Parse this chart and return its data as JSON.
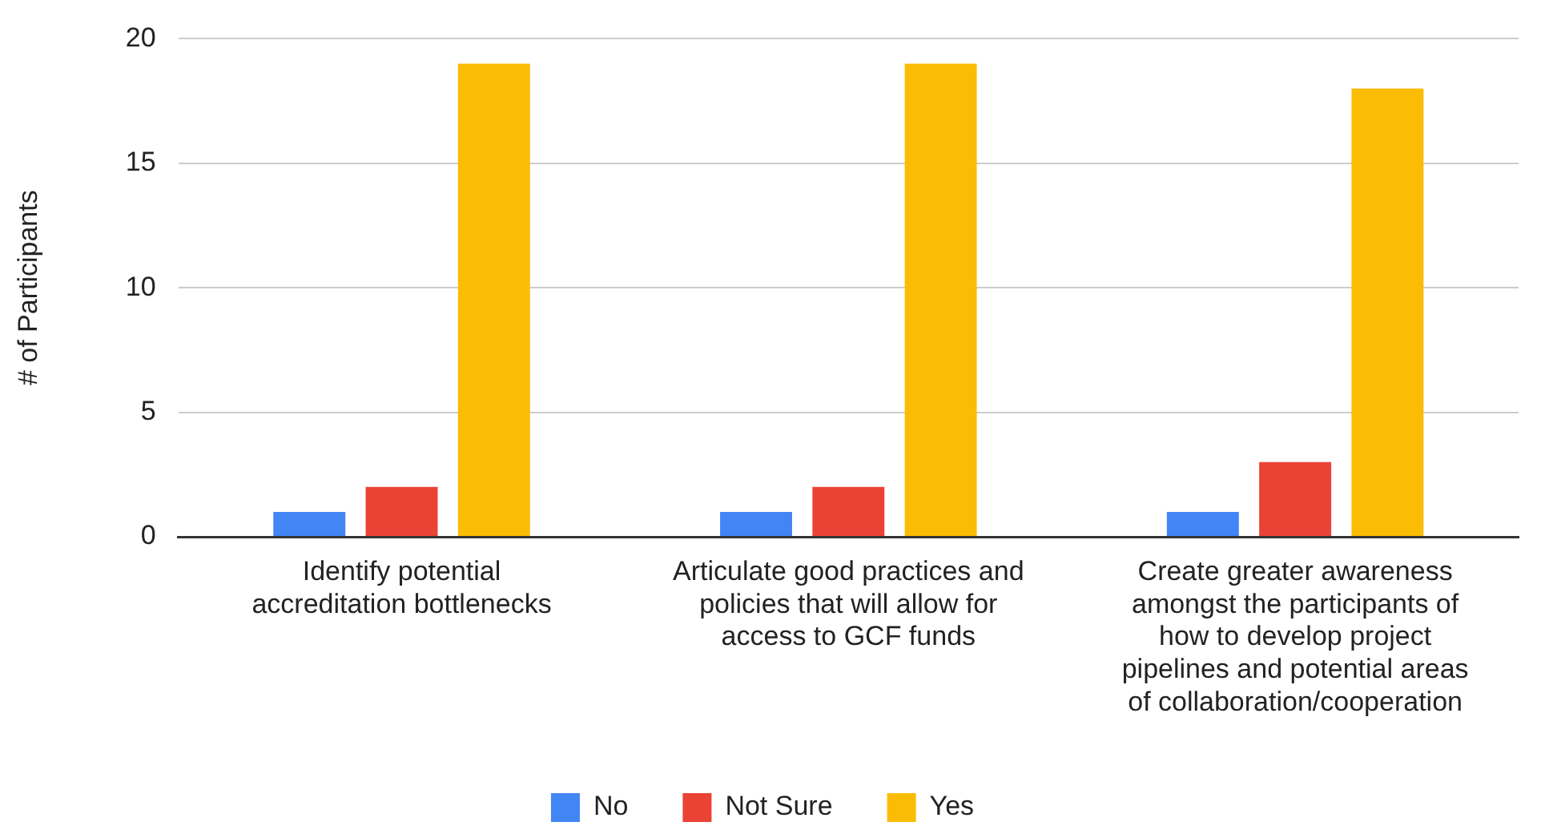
{
  "chart_data": {
    "type": "bar",
    "ylabel": "# of Participants",
    "categories": [
      "Identify potential accreditation bottlenecks",
      "Articulate good practices and policies that will allow for access to GCF funds",
      "Create greater awareness amongst the participants of how to develop project pipelines and potential areas of collaboration/cooperation"
    ],
    "series": [
      {
        "name": "No",
        "color": "#4285f4",
        "values": [
          1,
          1,
          1
        ]
      },
      {
        "name": "Not Sure",
        "color": "#ea4335",
        "values": [
          2,
          2,
          3
        ]
      },
      {
        "name": "Yes",
        "color": "#fbbc04",
        "values": [
          19,
          19,
          18
        ]
      }
    ],
    "ylim": [
      0,
      20
    ],
    "yticks": [
      0,
      5,
      10,
      15,
      20
    ],
    "grid": "y",
    "legend": "bottom"
  }
}
